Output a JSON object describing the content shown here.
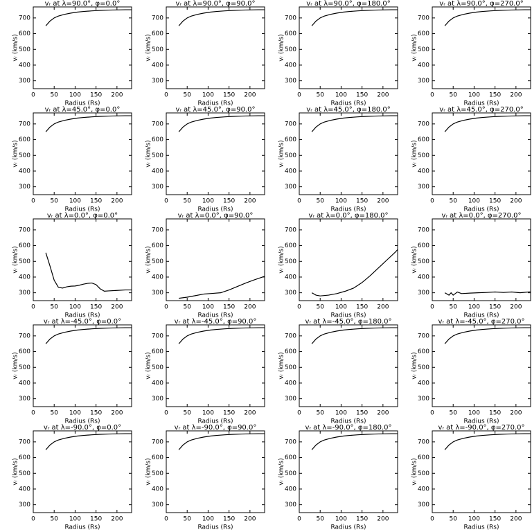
{
  "chart_data": [
    {
      "type": "line",
      "title": "vᵣ at λ=90.0°, φ=0.0°",
      "xlabel": "Radius (Rs)",
      "ylabel": "vᵣ (km/s)",
      "x": [
        30,
        40,
        50,
        60,
        75,
        90,
        105,
        120,
        140,
        160,
        180,
        200,
        220,
        235
      ],
      "values": [
        650,
        680,
        700,
        712,
        723,
        731,
        737,
        741,
        745,
        748,
        750,
        751,
        752,
        752
      ],
      "xlim": [
        0,
        235
      ],
      "ylim": [
        250,
        770
      ],
      "xticks": [
        0,
        50,
        100,
        150,
        200
      ],
      "yticks": [
        300,
        400,
        500,
        600,
        700
      ],
      "color": "#000000"
    },
    {
      "type": "line",
      "title": "vᵣ at λ=90.0°, φ=90.0°",
      "xlabel": "Radius (Rs)",
      "ylabel": "vᵣ (km/s)",
      "x": [
        30,
        40,
        50,
        60,
        75,
        90,
        105,
        120,
        140,
        160,
        180,
        200,
        220,
        235
      ],
      "values": [
        650,
        680,
        700,
        712,
        723,
        731,
        737,
        741,
        745,
        748,
        750,
        751,
        752,
        752
      ],
      "xlim": [
        0,
        235
      ],
      "ylim": [
        250,
        770
      ],
      "xticks": [
        0,
        50,
        100,
        150,
        200
      ],
      "yticks": [
        300,
        400,
        500,
        600,
        700
      ],
      "color": "#000000"
    },
    {
      "type": "line",
      "title": "vᵣ at λ=90.0°, φ=180.0°",
      "xlabel": "Radius (Rs)",
      "ylabel": "vᵣ (km/s)",
      "x": [
        30,
        40,
        50,
        60,
        75,
        90,
        105,
        120,
        140,
        160,
        180,
        200,
        220,
        235
      ],
      "values": [
        650,
        680,
        700,
        712,
        723,
        731,
        737,
        741,
        745,
        748,
        750,
        751,
        752,
        752
      ],
      "xlim": [
        0,
        235
      ],
      "ylim": [
        250,
        770
      ],
      "xticks": [
        0,
        50,
        100,
        150,
        200
      ],
      "yticks": [
        300,
        400,
        500,
        600,
        700
      ],
      "color": "#000000"
    },
    {
      "type": "line",
      "title": "vᵣ at λ=90.0°, φ=270.0°",
      "xlabel": "Radius (Rs)",
      "ylabel": "vᵣ (km/s)",
      "x": [
        30,
        40,
        50,
        60,
        75,
        90,
        105,
        120,
        140,
        160,
        180,
        200,
        220,
        235
      ],
      "values": [
        650,
        680,
        700,
        712,
        723,
        731,
        737,
        741,
        745,
        748,
        750,
        751,
        752,
        752
      ],
      "xlim": [
        0,
        235
      ],
      "ylim": [
        250,
        770
      ],
      "xticks": [
        0,
        50,
        100,
        150,
        200
      ],
      "yticks": [
        300,
        400,
        500,
        600,
        700
      ],
      "color": "#000000"
    },
    {
      "type": "line",
      "title": "vᵣ at λ=45.0°, φ=0.0°",
      "xlabel": "Radius (Rs)",
      "ylabel": "vᵣ (km/s)",
      "x": [
        30,
        40,
        50,
        60,
        75,
        90,
        105,
        120,
        140,
        160,
        180,
        200,
        220,
        235
      ],
      "values": [
        650,
        680,
        700,
        712,
        723,
        731,
        737,
        741,
        745,
        748,
        750,
        751,
        752,
        752
      ],
      "xlim": [
        0,
        235
      ],
      "ylim": [
        250,
        770
      ],
      "xticks": [
        0,
        50,
        100,
        150,
        200
      ],
      "yticks": [
        300,
        400,
        500,
        600,
        700
      ],
      "color": "#000000"
    },
    {
      "type": "line",
      "title": "vᵣ at λ=45.0°, φ=90.0°",
      "xlabel": "Radius (Rs)",
      "ylabel": "vᵣ (km/s)",
      "x": [
        30,
        40,
        50,
        60,
        75,
        90,
        105,
        120,
        140,
        160,
        180,
        200,
        220,
        235
      ],
      "values": [
        650,
        680,
        700,
        712,
        723,
        731,
        737,
        741,
        745,
        748,
        750,
        751,
        752,
        752
      ],
      "xlim": [
        0,
        235
      ],
      "ylim": [
        250,
        770
      ],
      "xticks": [
        0,
        50,
        100,
        150,
        200
      ],
      "yticks": [
        300,
        400,
        500,
        600,
        700
      ],
      "color": "#000000"
    },
    {
      "type": "line",
      "title": "vᵣ at λ=45.0°, φ=180.0°",
      "xlabel": "Radius (Rs)",
      "ylabel": "vᵣ (km/s)",
      "x": [
        30,
        40,
        50,
        60,
        75,
        90,
        105,
        120,
        140,
        160,
        180,
        200,
        220,
        235
      ],
      "values": [
        650,
        680,
        700,
        712,
        723,
        731,
        737,
        741,
        745,
        748,
        750,
        751,
        752,
        752
      ],
      "xlim": [
        0,
        235
      ],
      "ylim": [
        250,
        770
      ],
      "xticks": [
        0,
        50,
        100,
        150,
        200
      ],
      "yticks": [
        300,
        400,
        500,
        600,
        700
      ],
      "color": "#000000"
    },
    {
      "type": "line",
      "title": "vᵣ at λ=45.0°, φ=270.0°",
      "xlabel": "Radius (Rs)",
      "ylabel": "vᵣ (km/s)",
      "x": [
        30,
        40,
        50,
        60,
        75,
        90,
        105,
        120,
        140,
        160,
        180,
        200,
        220,
        235
      ],
      "values": [
        650,
        680,
        700,
        712,
        723,
        731,
        737,
        741,
        745,
        748,
        750,
        751,
        752,
        752
      ],
      "xlim": [
        0,
        235
      ],
      "ylim": [
        250,
        770
      ],
      "xticks": [
        0,
        50,
        100,
        150,
        200
      ],
      "yticks": [
        300,
        400,
        500,
        600,
        700
      ],
      "color": "#000000"
    },
    {
      "type": "line",
      "title": "vᵣ at λ=0.0°, φ=0.0°",
      "xlabel": "Radius (Rs)",
      "ylabel": "vᵣ (km/s)",
      "x": [
        30,
        40,
        50,
        60,
        70,
        80,
        90,
        100,
        110,
        120,
        130,
        140,
        150,
        160,
        170,
        180,
        200,
        220,
        235
      ],
      "values": [
        555,
        470,
        380,
        335,
        330,
        338,
        342,
        343,
        348,
        355,
        360,
        362,
        352,
        325,
        310,
        312,
        315,
        318,
        318
      ],
      "xlim": [
        0,
        235
      ],
      "ylim": [
        250,
        770
      ],
      "xticks": [
        0,
        50,
        100,
        150,
        200
      ],
      "yticks": [
        300,
        400,
        500,
        600,
        700
      ],
      "color": "#000000"
    },
    {
      "type": "line",
      "title": "vᵣ at λ=0.0°, φ=90.0°",
      "xlabel": "Radius (Rs)",
      "ylabel": "vᵣ (km/s)",
      "x": [
        30,
        50,
        70,
        90,
        110,
        130,
        150,
        170,
        190,
        210,
        230,
        235
      ],
      "values": [
        265,
        272,
        282,
        292,
        296,
        300,
        318,
        340,
        362,
        382,
        400,
        405
      ],
      "xlim": [
        0,
        235
      ],
      "ylim": [
        250,
        770
      ],
      "xticks": [
        0,
        50,
        100,
        150,
        200
      ],
      "yticks": [
        300,
        400,
        500,
        600,
        700
      ],
      "color": "#000000"
    },
    {
      "type": "line",
      "title": "vᵣ at λ=0.0°, φ=180.0°",
      "xlabel": "Radius (Rs)",
      "ylabel": "vᵣ (km/s)",
      "x": [
        30,
        40,
        50,
        70,
        90,
        110,
        130,
        150,
        170,
        190,
        210,
        230,
        235
      ],
      "values": [
        300,
        285,
        280,
        285,
        295,
        310,
        330,
        365,
        410,
        460,
        510,
        560,
        575
      ],
      "xlim": [
        0,
        235
      ],
      "ylim": [
        250,
        770
      ],
      "xticks": [
        0,
        50,
        100,
        150,
        200
      ],
      "yticks": [
        300,
        400,
        500,
        600,
        700
      ],
      "color": "#000000"
    },
    {
      "type": "line",
      "title": "vᵣ at λ=0.0°, φ=270.0°",
      "xlabel": "Radius (Rs)",
      "ylabel": "vᵣ (km/s)",
      "x": [
        30,
        40,
        45,
        50,
        60,
        70,
        90,
        110,
        130,
        150,
        170,
        190,
        210,
        230,
        235
      ],
      "values": [
        300,
        285,
        300,
        285,
        305,
        295,
        298,
        300,
        302,
        305,
        302,
        305,
        300,
        305,
        306
      ],
      "xlim": [
        0,
        235
      ],
      "ylim": [
        250,
        770
      ],
      "xticks": [
        0,
        50,
        100,
        150,
        200
      ],
      "yticks": [
        300,
        400,
        500,
        600,
        700
      ],
      "color": "#000000"
    },
    {
      "type": "line",
      "title": "vᵣ at λ=-45.0°, φ=0.0°",
      "xlabel": "Radius (Rs)",
      "ylabel": "vᵣ (km/s)",
      "x": [
        30,
        40,
        50,
        60,
        75,
        90,
        105,
        120,
        140,
        160,
        180,
        200,
        220,
        235
      ],
      "values": [
        650,
        680,
        700,
        712,
        723,
        731,
        737,
        741,
        745,
        748,
        750,
        751,
        752,
        752
      ],
      "xlim": [
        0,
        235
      ],
      "ylim": [
        250,
        770
      ],
      "xticks": [
        0,
        50,
        100,
        150,
        200
      ],
      "yticks": [
        300,
        400,
        500,
        600,
        700
      ],
      "color": "#000000"
    },
    {
      "type": "line",
      "title": "vᵣ at λ=-45.0°, φ=90.0°",
      "xlabel": "Radius (Rs)",
      "ylabel": "vᵣ (km/s)",
      "x": [
        30,
        40,
        50,
        60,
        75,
        90,
        105,
        120,
        140,
        160,
        180,
        200,
        220,
        235
      ],
      "values": [
        650,
        680,
        700,
        712,
        723,
        731,
        737,
        741,
        745,
        748,
        750,
        751,
        752,
        752
      ],
      "xlim": [
        0,
        235
      ],
      "ylim": [
        250,
        770
      ],
      "xticks": [
        0,
        50,
        100,
        150,
        200
      ],
      "yticks": [
        300,
        400,
        500,
        600,
        700
      ],
      "color": "#000000"
    },
    {
      "type": "line",
      "title": "vᵣ at λ=-45.0°, φ=180.0°",
      "xlabel": "Radius (Rs)",
      "ylabel": "vᵣ (km/s)",
      "x": [
        30,
        40,
        50,
        60,
        75,
        90,
        105,
        120,
        140,
        160,
        180,
        200,
        220,
        235
      ],
      "values": [
        650,
        680,
        700,
        712,
        723,
        731,
        737,
        741,
        745,
        748,
        750,
        751,
        752,
        752
      ],
      "xlim": [
        0,
        235
      ],
      "ylim": [
        250,
        770
      ],
      "xticks": [
        0,
        50,
        100,
        150,
        200
      ],
      "yticks": [
        300,
        400,
        500,
        600,
        700
      ],
      "color": "#000000"
    },
    {
      "type": "line",
      "title": "vᵣ at λ=-45.0°, φ=270.0°",
      "xlabel": "Radius (Rs)",
      "ylabel": "vᵣ (km/s)",
      "x": [
        30,
        40,
        50,
        60,
        75,
        90,
        105,
        120,
        140,
        160,
        180,
        200,
        220,
        235
      ],
      "values": [
        650,
        680,
        700,
        712,
        723,
        731,
        737,
        741,
        745,
        748,
        750,
        751,
        752,
        752
      ],
      "xlim": [
        0,
        235
      ],
      "ylim": [
        250,
        770
      ],
      "xticks": [
        0,
        50,
        100,
        150,
        200
      ],
      "yticks": [
        300,
        400,
        500,
        600,
        700
      ],
      "color": "#000000"
    },
    {
      "type": "line",
      "title": "vᵣ at λ=-90.0°, φ=0.0°",
      "xlabel": "Radius (Rs)",
      "ylabel": "vᵣ (km/s)",
      "x": [
        30,
        40,
        50,
        60,
        75,
        90,
        105,
        120,
        140,
        160,
        180,
        200,
        220,
        235
      ],
      "values": [
        650,
        680,
        700,
        712,
        723,
        731,
        737,
        741,
        745,
        748,
        750,
        751,
        752,
        752
      ],
      "xlim": [
        0,
        235
      ],
      "ylim": [
        250,
        770
      ],
      "xticks": [
        0,
        50,
        100,
        150,
        200
      ],
      "yticks": [
        300,
        400,
        500,
        600,
        700
      ],
      "color": "#000000"
    },
    {
      "type": "line",
      "title": "vᵣ at λ=-90.0°, φ=90.0°",
      "xlabel": "Radius (Rs)",
      "ylabel": "vᵣ (km/s)",
      "x": [
        30,
        40,
        50,
        60,
        75,
        90,
        105,
        120,
        140,
        160,
        180,
        200,
        220,
        235
      ],
      "values": [
        650,
        680,
        700,
        712,
        723,
        731,
        737,
        741,
        745,
        748,
        750,
        751,
        752,
        752
      ],
      "xlim": [
        0,
        235
      ],
      "ylim": [
        250,
        770
      ],
      "xticks": [
        0,
        50,
        100,
        150,
        200
      ],
      "yticks": [
        300,
        400,
        500,
        600,
        700
      ],
      "color": "#000000"
    },
    {
      "type": "line",
      "title": "vᵣ at λ=-90.0°, φ=180.0°",
      "xlabel": "Radius (Rs)",
      "ylabel": "vᵣ (km/s)",
      "x": [
        30,
        40,
        50,
        60,
        75,
        90,
        105,
        120,
        140,
        160,
        180,
        200,
        220,
        235
      ],
      "values": [
        650,
        680,
        700,
        712,
        723,
        731,
        737,
        741,
        745,
        748,
        750,
        751,
        752,
        752
      ],
      "xlim": [
        0,
        235
      ],
      "ylim": [
        250,
        770
      ],
      "xticks": [
        0,
        50,
        100,
        150,
        200
      ],
      "yticks": [
        300,
        400,
        500,
        600,
        700
      ],
      "color": "#000000"
    },
    {
      "type": "line",
      "title": "vᵣ at λ=-90.0°, φ=270.0°",
      "xlabel": "Radius (Rs)",
      "ylabel": "vᵣ (km/s)",
      "x": [
        30,
        40,
        50,
        60,
        75,
        90,
        105,
        120,
        140,
        160,
        180,
        200,
        220,
        235
      ],
      "values": [
        650,
        680,
        700,
        712,
        723,
        731,
        737,
        741,
        745,
        748,
        750,
        751,
        752,
        752
      ],
      "xlim": [
        0,
        235
      ],
      "ylim": [
        250,
        770
      ],
      "xticks": [
        0,
        50,
        100,
        150,
        200
      ],
      "yticks": [
        300,
        400,
        500,
        600,
        700
      ],
      "color": "#000000"
    }
  ]
}
